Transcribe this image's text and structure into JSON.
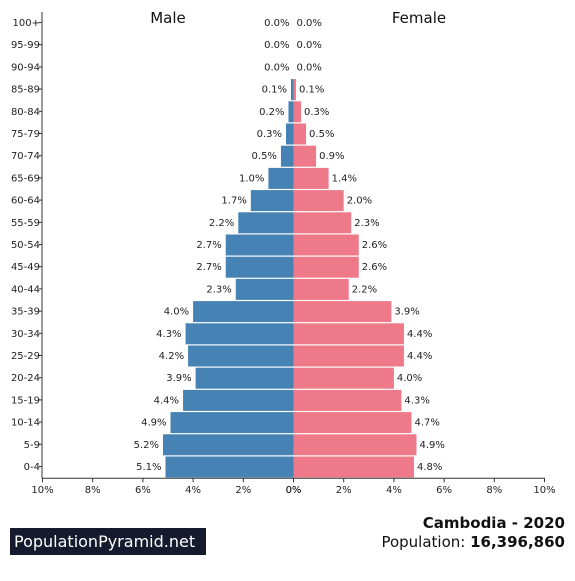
{
  "chart_data": {
    "type": "bar",
    "orientation": "horizontal-mirrored",
    "categories": [
      "100+",
      "95-99",
      "90-94",
      "85-89",
      "80-84",
      "75-79",
      "70-74",
      "65-69",
      "60-64",
      "55-59",
      "50-54",
      "45-49",
      "40-44",
      "35-39",
      "30-34",
      "25-29",
      "20-24",
      "15-19",
      "10-14",
      "5-9",
      "0-4"
    ],
    "series": [
      {
        "name": "Male",
        "color": "#4682b4",
        "values": [
          0.0,
          0.0,
          0.0,
          0.1,
          0.2,
          0.3,
          0.5,
          1.0,
          1.7,
          2.2,
          2.7,
          2.7,
          2.3,
          4.0,
          4.3,
          4.2,
          3.9,
          4.4,
          4.9,
          5.2,
          5.1
        ]
      },
      {
        "name": "Female",
        "color": "#ee7989",
        "values": [
          0.0,
          0.0,
          0.0,
          0.1,
          0.3,
          0.5,
          0.9,
          1.4,
          2.0,
          2.3,
          2.6,
          2.6,
          2.2,
          3.9,
          4.4,
          4.4,
          4.0,
          4.3,
          4.7,
          4.9,
          4.8
        ]
      }
    ],
    "xlim": [
      0,
      10
    ],
    "xticks_left": [
      "10%",
      "8%",
      "6%",
      "4%",
      "2%",
      "0%"
    ],
    "xticks_right": [
      "0%",
      "2%",
      "4%",
      "6%",
      "8%",
      "10%"
    ],
    "unit": "%",
    "grid": false
  },
  "footer": {
    "brand": "PopulationPyramid.net",
    "country_year": "Cambodia - 2020",
    "population_label": "Population: ",
    "population_value": "16,396,860"
  }
}
